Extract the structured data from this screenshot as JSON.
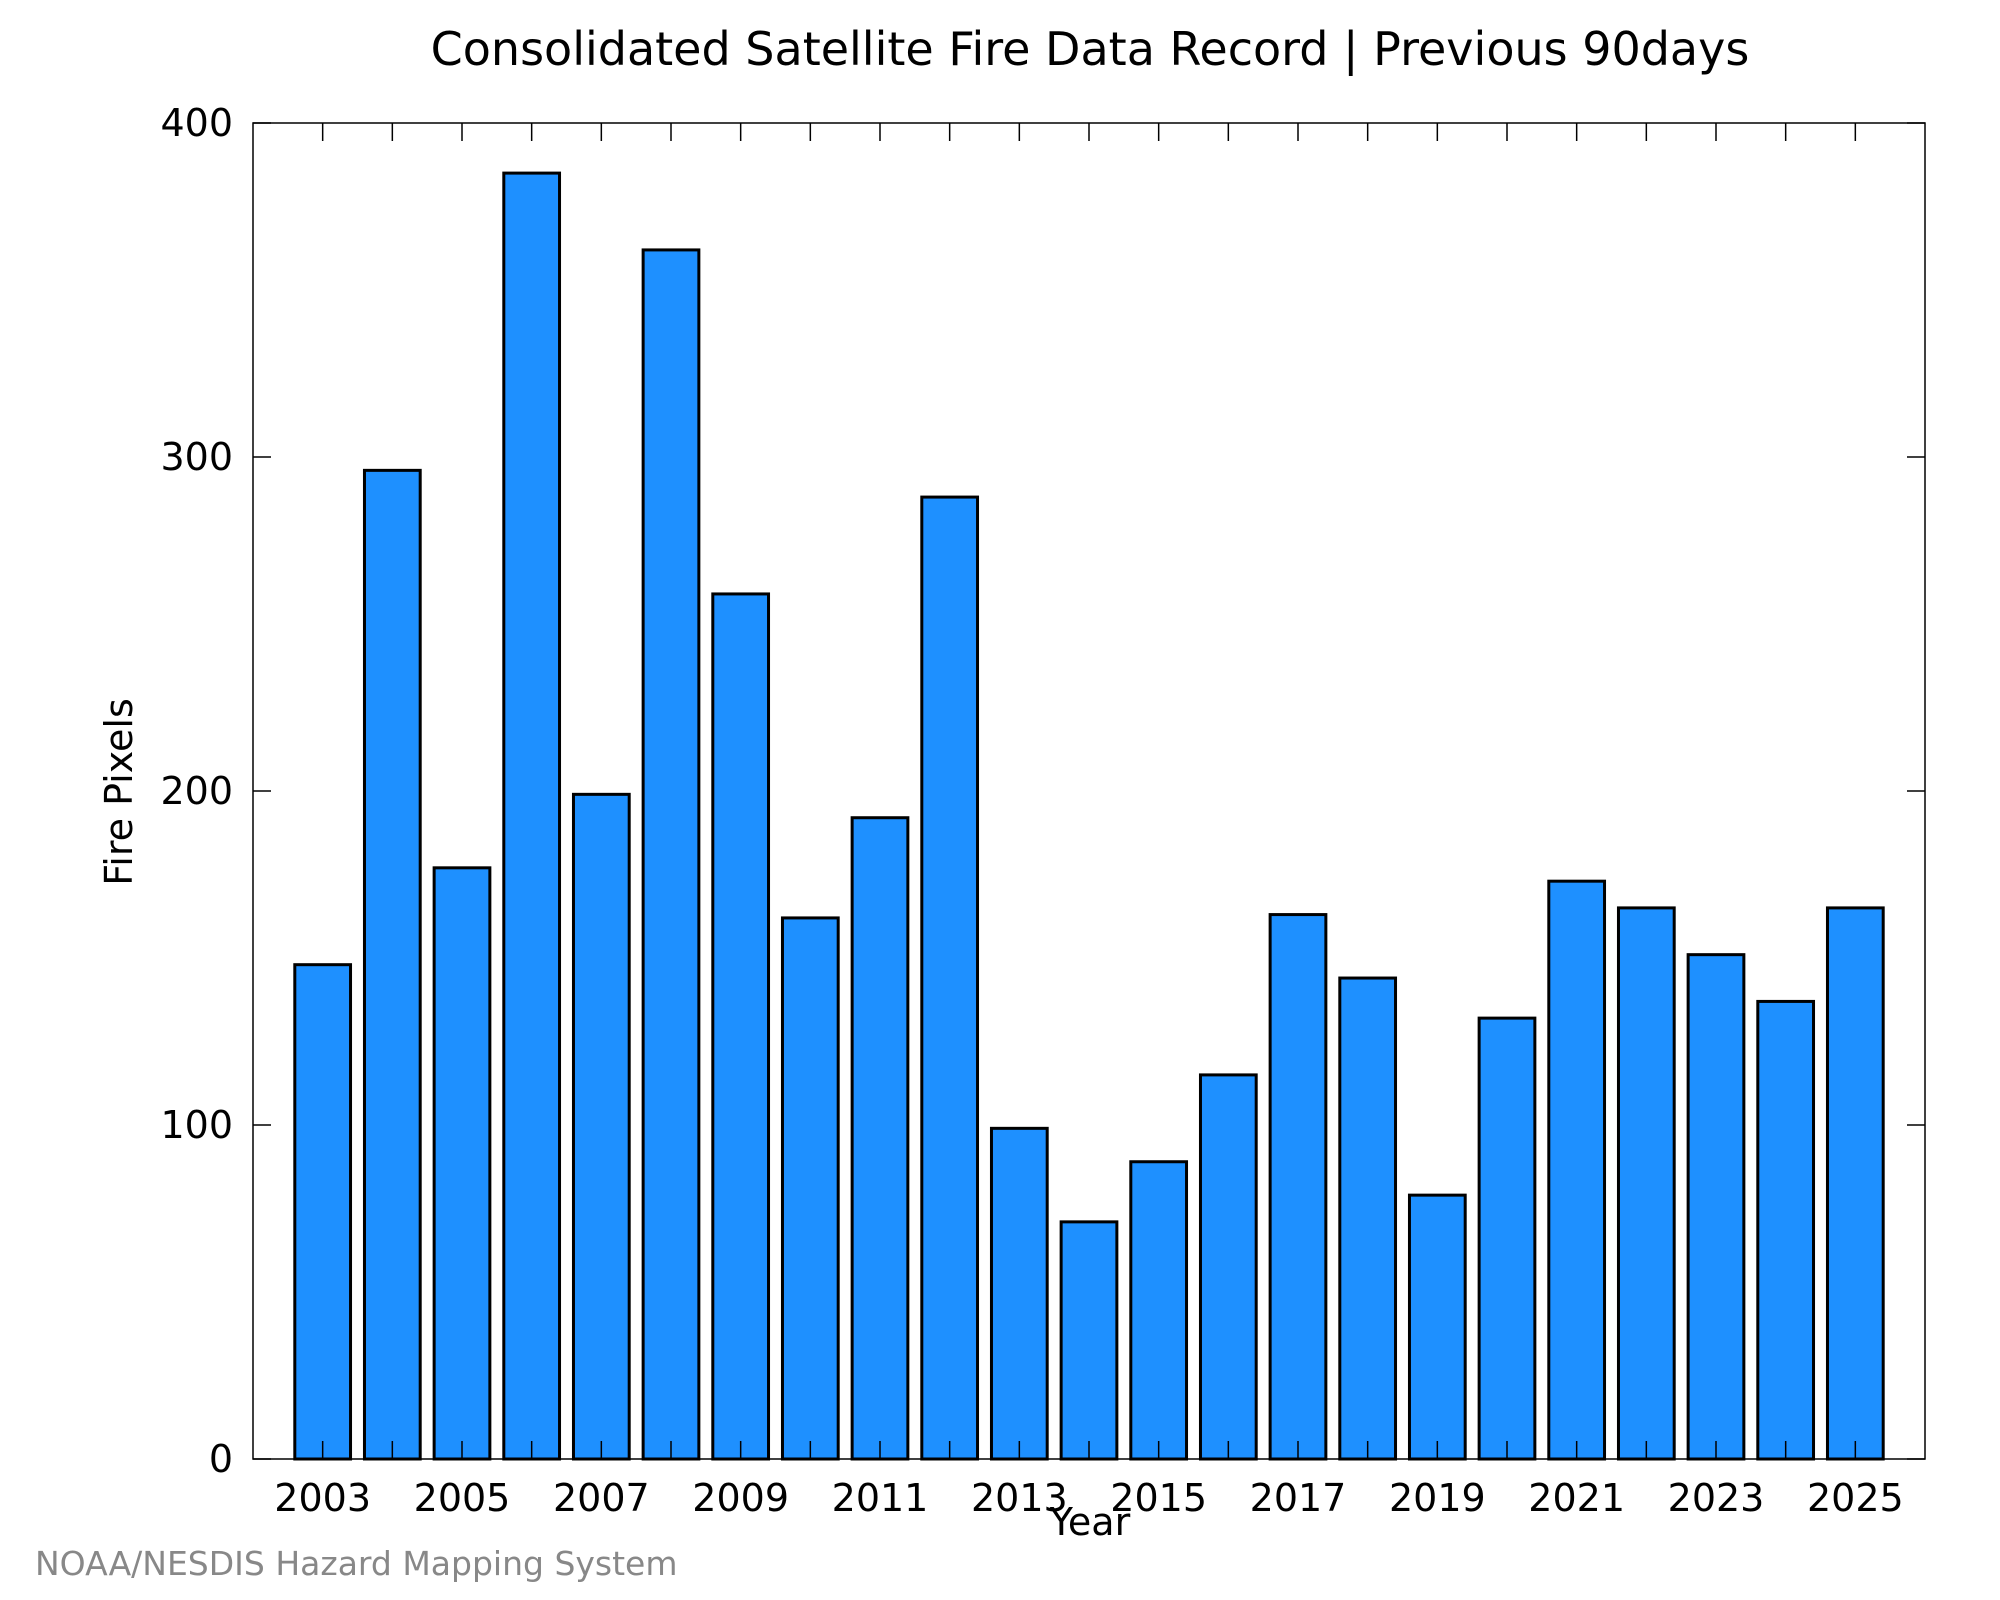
{
  "chart_data": {
    "type": "bar",
    "title": "Consolidated Satellite Fire Data Record | Previous 90days",
    "xlabel": "Year",
    "ylabel": "Fire Pixels",
    "categories": [
      "2003",
      "2004",
      "2005",
      "2006",
      "2007",
      "2008",
      "2009",
      "2010",
      "2011",
      "2012",
      "2013",
      "2014",
      "2015",
      "2016",
      "2017",
      "2018",
      "2019",
      "2020",
      "2021",
      "2022",
      "2023",
      "2024",
      "2025"
    ],
    "values": [
      148,
      296,
      177,
      385,
      199,
      362,
      259,
      162,
      192,
      288,
      99,
      71,
      89,
      115,
      163,
      144,
      79,
      132,
      173,
      165,
      151,
      137,
      165
    ],
    "x_tick_labels": [
      "2003",
      "2005",
      "2007",
      "2009",
      "2011",
      "2013",
      "2015",
      "2017",
      "2019",
      "2021",
      "2023",
      "2025"
    ],
    "y_ticks": [
      0,
      100,
      200,
      300,
      400
    ],
    "y_tick_labels": [
      "0",
      "100",
      "200",
      "300",
      "400"
    ],
    "ylim": [
      0,
      400
    ],
    "bar_color": "#1E90FF",
    "bar_edge_color": "#000000",
    "grid": false,
    "legend": "none"
  },
  "footer": {
    "credit": "NOAA/NESDIS Hazard Mapping System"
  }
}
